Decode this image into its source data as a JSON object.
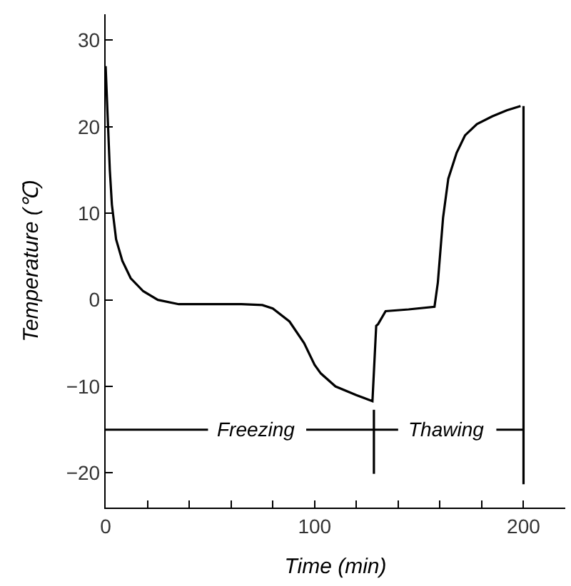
{
  "chart_data": {
    "type": "line",
    "xlabel": "Time (min)",
    "ylabel": "Temperature (℃)",
    "xlim": [
      0,
      220
    ],
    "ylim": [
      -24,
      33
    ],
    "xticks": [
      0,
      {
        "value": 20,
        "label": null
      },
      {
        "value": 40,
        "label": null
      },
      {
        "value": 60,
        "label": null
      },
      {
        "value": 80,
        "label": null
      },
      100,
      {
        "value": 120,
        "label": null
      },
      {
        "value": 140,
        "label": null
      },
      {
        "value": 160,
        "label": null
      },
      {
        "value": 180,
        "label": null
      },
      200
    ],
    "yticks": [
      -20,
      -10,
      0,
      10,
      20,
      30
    ],
    "marker": "none",
    "line_style": "solid",
    "series": [
      {
        "color": "#000000",
        "x": [
          0,
          1,
          2,
          3,
          5,
          8,
          12,
          18,
          25,
          35,
          50,
          65,
          75,
          80,
          88,
          95,
          100,
          103,
          110,
          120,
          127.7,
          129.5,
          130.4,
          134,
          145,
          157.4,
          159,
          161.5,
          164,
          168,
          172,
          177.7,
          185,
          192,
          198.6
        ],
        "values": [
          27,
          21,
          15,
          11,
          7,
          4.5,
          2.5,
          1,
          0,
          -0.5,
          -0.5,
          -0.5,
          -0.6,
          -1,
          -2.5,
          -5,
          -7.5,
          -8.5,
          -10,
          -11,
          -11.7,
          -3,
          -2.8,
          -1.3,
          -1.1,
          -0.8,
          2,
          9.5,
          14,
          17,
          19,
          20.3,
          21.2,
          21.9,
          22.4
        ]
      },
      {
        "color": "#000000",
        "x": [
          128.4,
          128.4
        ],
        "values": [
          -12.7,
          -20.1
        ]
      },
      {
        "color": "#000000",
        "x": [
          200,
          200
        ],
        "values": [
          22.4,
          -21.3
        ]
      },
      {
        "color": "#000000",
        "x": [
          0,
          49,
          72,
          96,
          128.4,
          140,
          163,
          187,
          200
        ],
        "values": [
          -15,
          -15,
          null,
          -15,
          -15,
          -15,
          null,
          -15,
          -15
        ]
      }
    ],
    "annotations": [
      "Freezing",
      "Thawing"
    ]
  }
}
